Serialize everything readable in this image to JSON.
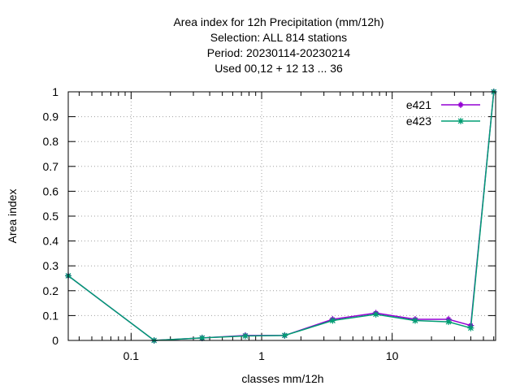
{
  "chart_data": {
    "type": "line",
    "title_lines": [
      "Area index  for 12h Precipitation (mm/12h)",
      "Selection: ALL    814 stations",
      "Period: 20230114-20230214",
      "Used  00,12  + 12 13 ... 36"
    ],
    "xlabel": "classes mm/12h",
    "ylabel": "Area index",
    "x_scale": "log",
    "xlim": [
      0.033,
      62
    ],
    "ylim": [
      0,
      1
    ],
    "x_ticks": [
      {
        "value": 0.1,
        "label": "0.1"
      },
      {
        "value": 1,
        "label": "1"
      },
      {
        "value": 10,
        "label": "10"
      }
    ],
    "y_ticks": [
      {
        "value": 0,
        "label": "0"
      },
      {
        "value": 0.1,
        "label": "0.1"
      },
      {
        "value": 0.2,
        "label": "0.2"
      },
      {
        "value": 0.3,
        "label": "0.3"
      },
      {
        "value": 0.4,
        "label": "0.4"
      },
      {
        "value": 0.5,
        "label": "0.5"
      },
      {
        "value": 0.6,
        "label": "0.6"
      },
      {
        "value": 0.7,
        "label": "0.7"
      },
      {
        "value": 0.8,
        "label": "0.8"
      },
      {
        "value": 0.9,
        "label": "0.9"
      },
      {
        "value": 1,
        "label": "1"
      }
    ],
    "grid": true,
    "legend_position": "top-right",
    "series": [
      {
        "name": "e421",
        "color": "#9400d3",
        "marker": "plus-square",
        "x": [
          0.033,
          0.15,
          0.35,
          0.75,
          1.5,
          3.5,
          7.5,
          15,
          27,
          40,
          60
        ],
        "y": [
          0.26,
          0.0,
          0.01,
          0.02,
          0.02,
          0.085,
          0.11,
          0.085,
          0.085,
          0.06,
          1.0
        ]
      },
      {
        "name": "e423",
        "color": "#009e73",
        "marker": "asterisk",
        "x": [
          0.033,
          0.15,
          0.35,
          0.75,
          1.5,
          3.5,
          7.5,
          15,
          27,
          40,
          60
        ],
        "y": [
          0.26,
          0.0,
          0.01,
          0.018,
          0.02,
          0.08,
          0.105,
          0.08,
          0.075,
          0.05,
          1.0
        ]
      }
    ]
  }
}
